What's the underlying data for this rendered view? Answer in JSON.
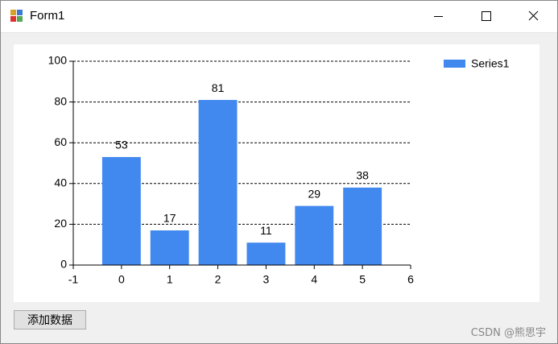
{
  "window": {
    "title": "Form1"
  },
  "chart_data": {
    "type": "bar",
    "x": [
      0,
      1,
      2,
      3,
      4,
      5
    ],
    "series": [
      {
        "name": "Series1",
        "color": "#4189ee",
        "values": [
          53,
          17,
          81,
          11,
          29,
          38
        ]
      }
    ],
    "xlim": [
      -1,
      6
    ],
    "xticks": [
      -1,
      0,
      1,
      2,
      3,
      4,
      5,
      6
    ],
    "ylim": [
      0,
      100
    ],
    "yticks": [
      0,
      20,
      40,
      60,
      80,
      100
    ],
    "grid": true,
    "legend": "top-right"
  },
  "button": "添加数据",
  "watermark": "CSDN @熊思宇"
}
